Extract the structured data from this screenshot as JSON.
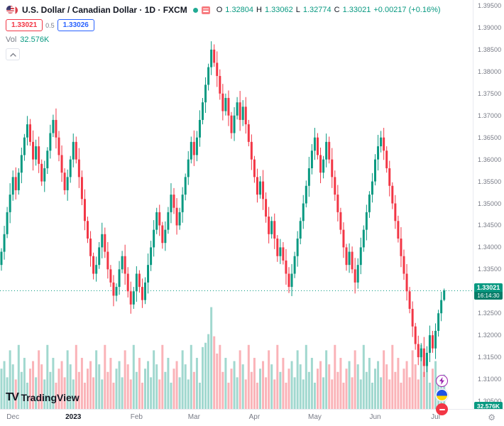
{
  "header": {
    "symbol_title": "U.S. Dollar / Canadian Dollar · 1D · FXCM",
    "ohlc": {
      "o_label": "O",
      "o": "1.32804",
      "h_label": "H",
      "h": "1.33062",
      "l_label": "L",
      "l": "1.32774",
      "c_label": "C",
      "c": "1.33021",
      "change": "+0.00217 (+0.16%)"
    },
    "sell_price": "1.33021",
    "spread": "0.5",
    "buy_price": "1.33026",
    "vol_label": "Vol",
    "vol_value": "32.576K"
  },
  "badges": {
    "price": "1.33021",
    "countdown": "16:14:30",
    "volume": "32.576K"
  },
  "logo": {
    "mark": "TV",
    "name": "TradingView"
  },
  "colors": {
    "up": "#089981",
    "down": "#f23645",
    "buy_blue": "#2962ff",
    "sell_red": "#f23645",
    "axis_text": "#787b86"
  },
  "chart_data": {
    "type": "candlestick_with_volume",
    "symbol": "USD/CAD",
    "interval": "1D",
    "exchange": "FXCM",
    "title": "U.S. Dollar / Canadian Dollar",
    "price_range": [
      1.305,
      1.395
    ],
    "price_axis_labels": [
      "1.39500",
      "1.39000",
      "1.38500",
      "1.38000",
      "1.37500",
      "1.37000",
      "1.36500",
      "1.36000",
      "1.35500",
      "1.35000",
      "1.34500",
      "1.34000",
      "1.33500",
      "1.32500",
      "1.32000",
      "1.31500",
      "1.31000",
      "1.30500"
    ],
    "time_ticks": [
      {
        "label": "Dec",
        "i": 4
      },
      {
        "label": "2023",
        "i": 25,
        "strong": true
      },
      {
        "label": "Feb",
        "i": 47
      },
      {
        "label": "Mar",
        "i": 67
      },
      {
        "label": "Apr",
        "i": 88
      },
      {
        "label": "May",
        "i": 109
      },
      {
        "label": "Jun",
        "i": 130
      },
      {
        "label": "Jul",
        "i": 151
      }
    ],
    "current_price": 1.33021,
    "countdown": "16:14:30",
    "current_volume_k": 32.576,
    "last_candle": {
      "open": 1.32804,
      "high": 1.33062,
      "low": 1.32774,
      "close": 1.33021
    },
    "open_rule": "each candle opens at the previous close; first open 1.3360",
    "closes": [
      1.339,
      1.343,
      1.348,
      1.352,
      1.356,
      1.353,
      1.357,
      1.361,
      1.365,
      1.368,
      1.364,
      1.36,
      1.363,
      1.359,
      1.355,
      1.358,
      1.362,
      1.366,
      1.369,
      1.365,
      1.361,
      1.357,
      1.353,
      1.356,
      1.36,
      1.364,
      1.36,
      1.356,
      1.351,
      1.346,
      1.342,
      1.338,
      1.334,
      1.336,
      1.34,
      1.343,
      1.339,
      1.335,
      1.332,
      1.329,
      1.331,
      1.335,
      1.338,
      1.334,
      1.33,
      1.327,
      1.33,
      1.334,
      1.331,
      1.328,
      1.332,
      1.336,
      1.34,
      1.344,
      1.348,
      1.345,
      1.341,
      1.344,
      1.348,
      1.352,
      1.349,
      1.345,
      1.348,
      1.352,
      1.356,
      1.36,
      1.364,
      1.361,
      1.365,
      1.369,
      1.373,
      1.377,
      1.381,
      1.385,
      1.382,
      1.379,
      1.375,
      1.371,
      1.374,
      1.37,
      1.366,
      1.37,
      1.373,
      1.369,
      1.372,
      1.368,
      1.364,
      1.36,
      1.356,
      1.352,
      1.355,
      1.351,
      1.347,
      1.343,
      1.346,
      1.342,
      1.338,
      1.34,
      1.337,
      1.334,
      1.331,
      1.334,
      1.338,
      1.342,
      1.346,
      1.35,
      1.354,
      1.358,
      1.362,
      1.365,
      1.361,
      1.357,
      1.36,
      1.364,
      1.36,
      1.356,
      1.352,
      1.348,
      1.344,
      1.34,
      1.336,
      1.339,
      1.335,
      1.332,
      1.336,
      1.34,
      1.344,
      1.348,
      1.352,
      1.355,
      1.36,
      1.363,
      1.365,
      1.362,
      1.358,
      1.354,
      1.35,
      1.346,
      1.342,
      1.338,
      1.334,
      1.33,
      1.326,
      1.322,
      1.318,
      1.315,
      1.317,
      1.313,
      1.316,
      1.32,
      1.317,
      1.321,
      1.325,
      1.328,
      1.33021
    ],
    "volumes_k": [
      38,
      45,
      30,
      55,
      42,
      28,
      60,
      35,
      48,
      25,
      38,
      45,
      30,
      55,
      42,
      28,
      60,
      35,
      48,
      25,
      38,
      45,
      30,
      55,
      42,
      28,
      60,
      35,
      48,
      25,
      38,
      45,
      30,
      55,
      42,
      28,
      60,
      35,
      48,
      25,
      38,
      45,
      30,
      55,
      42,
      28,
      60,
      35,
      48,
      25,
      38,
      45,
      30,
      55,
      42,
      28,
      60,
      35,
      48,
      25,
      38,
      45,
      30,
      55,
      42,
      28,
      60,
      35,
      48,
      25,
      58,
      62,
      70,
      95,
      68,
      52,
      60,
      35,
      48,
      25,
      38,
      45,
      30,
      55,
      42,
      28,
      60,
      35,
      48,
      25,
      38,
      45,
      30,
      55,
      42,
      28,
      60,
      35,
      48,
      25,
      38,
      45,
      30,
      55,
      42,
      28,
      60,
      35,
      48,
      25,
      38,
      45,
      30,
      55,
      42,
      28,
      60,
      35,
      48,
      25,
      38,
      45,
      30,
      55,
      42,
      28,
      60,
      35,
      48,
      25,
      38,
      45,
      30,
      55,
      42,
      28,
      60,
      35,
      48,
      25,
      38,
      45,
      30,
      55,
      42,
      28,
      60,
      35,
      48,
      25,
      38,
      45,
      30,
      28,
      32.576
    ],
    "legend_position": "none",
    "grid": false
  }
}
